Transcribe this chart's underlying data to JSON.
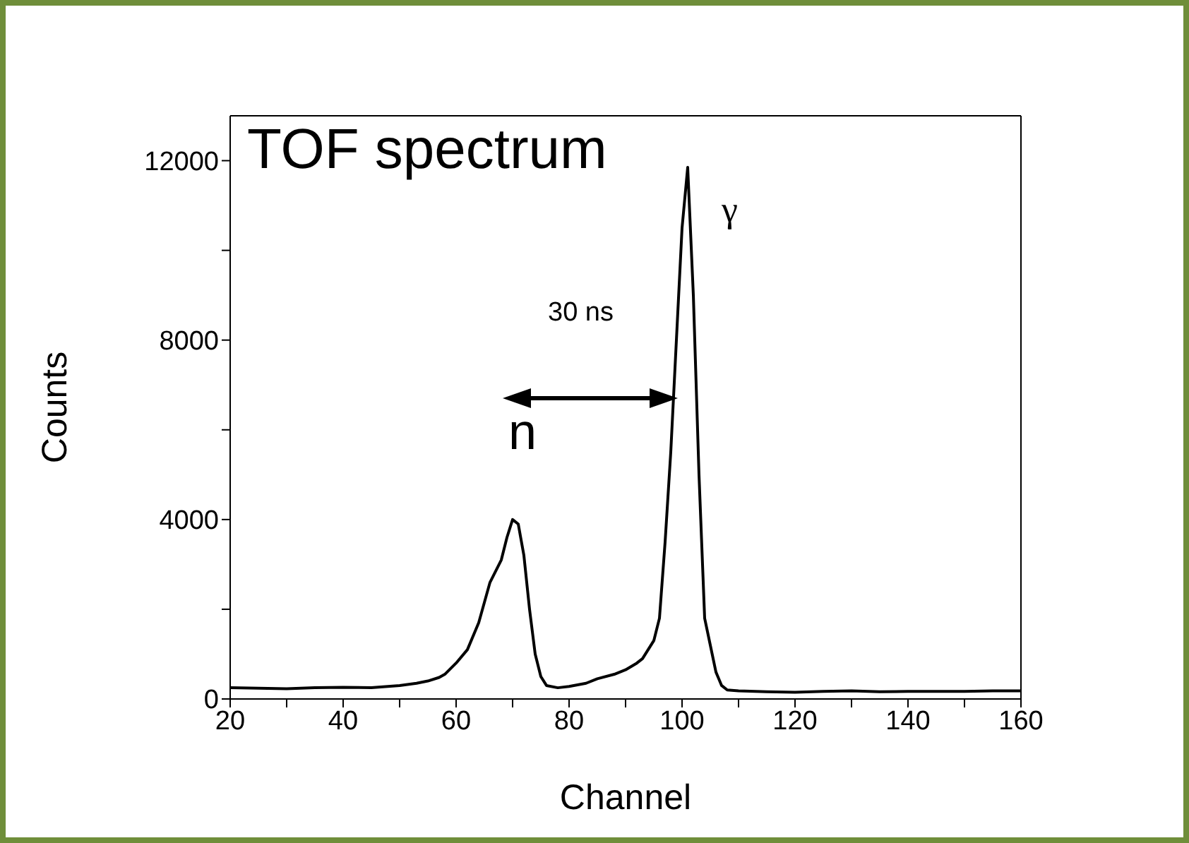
{
  "chart_data": {
    "type": "line",
    "title": "TOF spectrum",
    "xlabel": "Channel",
    "ylabel": "Counts",
    "xlim": [
      20,
      160
    ],
    "xticks": [
      20,
      {
        "value": 30,
        "label": null
      },
      40,
      {
        "value": 50,
        "label": null
      },
      60,
      {
        "value": 70,
        "label": null
      },
      80,
      {
        "value": 90,
        "label": null
      },
      100,
      {
        "value": 110,
        "label": null
      },
      120,
      {
        "value": 130,
        "label": null
      },
      140,
      {
        "value": 150,
        "label": null
      },
      160
    ],
    "ylim": [
      0,
      13000
    ],
    "yticks": [
      0,
      {
        "value": 2000,
        "label": null
      },
      4000,
      {
        "value": 6000,
        "label": null
      },
      8000,
      {
        "value": 10000,
        "label": null
      },
      12000
    ],
    "grid": false,
    "legend": false,
    "marker": "none",
    "line_style": "solid",
    "annotations": [
      "30 ns",
      "n",
      "γ"
    ],
    "series": [
      {
        "color": "#000000",
        "x": [
          20,
          25,
          30,
          35,
          40,
          45,
          50,
          53,
          55,
          57,
          58,
          60,
          62,
          64,
          66,
          68,
          69,
          70,
          71,
          72,
          73,
          74,
          75,
          76,
          78,
          80,
          83,
          85,
          88,
          90,
          92,
          93,
          95,
          96,
          97,
          98,
          99,
          100,
          101,
          102,
          103,
          104,
          105,
          106,
          107,
          108,
          110,
          115,
          120,
          125,
          130,
          135,
          140,
          145,
          150,
          155,
          160
        ],
        "values": [
          250,
          240,
          230,
          250,
          260,
          250,
          300,
          350,
          400,
          480,
          550,
          800,
          1100,
          1700,
          2600,
          3100,
          3600,
          4000,
          3900,
          3200,
          2000,
          1000,
          500,
          300,
          250,
          280,
          350,
          450,
          550,
          650,
          800,
          900,
          1300,
          1800,
          3500,
          5500,
          8000,
          10500,
          11850,
          9000,
          5000,
          1800,
          1200,
          600,
          300,
          200,
          180,
          160,
          150,
          170,
          180,
          160,
          170,
          170,
          170,
          180,
          180
        ]
      }
    ]
  }
}
